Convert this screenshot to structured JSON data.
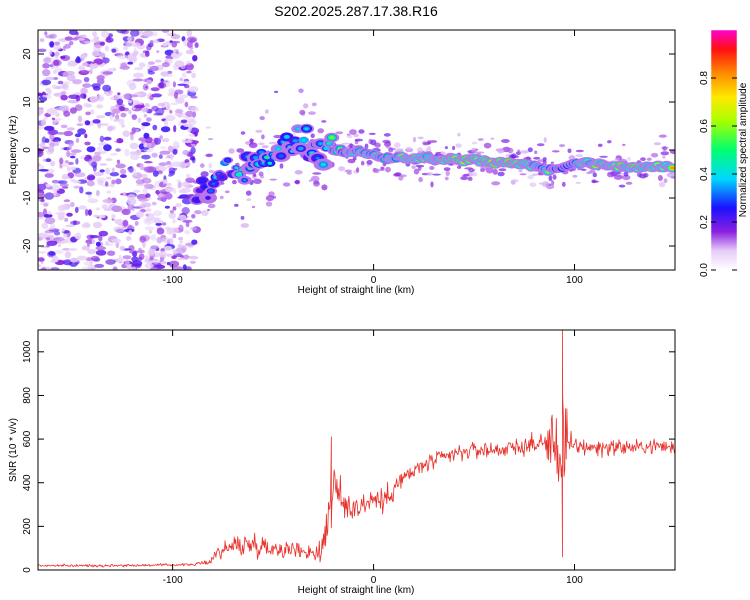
{
  "figure_title": "S202.2025.287.17.38.R16",
  "chart_data": [
    {
      "type": "heatmap",
      "title": "S202.2025.287.17.38.R16",
      "xlabel": "Height of straight line (km)",
      "ylabel": "Frequency (Hz)",
      "xlim": [
        -167,
        150
      ],
      "ylim": [
        -25,
        25
      ],
      "xticks": [
        -100,
        0,
        100
      ],
      "yticks": [
        -20,
        -10,
        0,
        10,
        20
      ],
      "colorbar": {
        "label": "Normalized spectral amplitude",
        "range": [
          0,
          1
        ],
        "ticks": [
          0.0,
          0.2,
          0.4,
          0.6,
          0.8
        ],
        "tick_labels": [
          "0.0",
          "0.2",
          "0.4",
          "0.6",
          "0.8"
        ]
      },
      "noise_region": {
        "x_range": [
          -167,
          -88
        ],
        "freq_range": [
          -25,
          25
        ],
        "amplitude": "low (0.05-0.25)"
      },
      "ridge": [
        {
          "x": -88,
          "freq": -9,
          "amplitude": 0.25
        },
        {
          "x": -80,
          "freq": -7,
          "amplitude": 0.35
        },
        {
          "x": -70,
          "freq": -5,
          "amplitude": 0.4
        },
        {
          "x": -60,
          "freq": -3,
          "amplitude": 0.42
        },
        {
          "x": -50,
          "freq": -1,
          "amplitude": 0.4
        },
        {
          "x": -40,
          "freq": 1.5,
          "amplitude": 0.4
        },
        {
          "x": -32,
          "freq": 2.5,
          "amplitude": 0.35
        },
        {
          "x": -25,
          "freq": 0.5,
          "amplitude": 0.45
        },
        {
          "x": -15,
          "freq": -0.5,
          "amplitude": 0.55
        },
        {
          "x": -5,
          "freq": -0.5,
          "amplitude": 0.75
        },
        {
          "x": 5,
          "freq": -1.5,
          "amplitude": 0.6
        },
        {
          "x": 15,
          "freq": -1.5,
          "amplitude": 0.75
        },
        {
          "x": 30,
          "freq": -2,
          "amplitude": 0.8
        },
        {
          "x": 45,
          "freq": -2,
          "amplitude": 0.95
        },
        {
          "x": 60,
          "freq": -2.5,
          "amplitude": 0.85
        },
        {
          "x": 75,
          "freq": -3,
          "amplitude": 0.9
        },
        {
          "x": 85,
          "freq": -4,
          "amplitude": 0.6
        },
        {
          "x": 95,
          "freq": -3.5,
          "amplitude": 0.55
        },
        {
          "x": 105,
          "freq": -2.5,
          "amplitude": 0.7
        },
        {
          "x": 115,
          "freq": -3,
          "amplitude": 0.8
        },
        {
          "x": 125,
          "freq": -3.5,
          "amplitude": 0.9
        },
        {
          "x": 140,
          "freq": -3.5,
          "amplitude": 0.9
        },
        {
          "x": 150,
          "freq": -3.5,
          "amplitude": 0.9
        }
      ]
    },
    {
      "type": "line",
      "title": "",
      "xlabel": "Height of straight line (km)",
      "ylabel": "SNR (10 * v/v)",
      "xlim": [
        -167,
        150
      ],
      "ylim": [
        0,
        1100
      ],
      "xticks": [
        -100,
        0,
        100
      ],
      "yticks": [
        0,
        200,
        400,
        600,
        800,
        1000
      ],
      "color": "#e8302a",
      "series": [
        {
          "name": "SNR",
          "x": [
            -167,
            -140,
            -110,
            -90,
            -82,
            -78,
            -70,
            -60,
            -50,
            -40,
            -30,
            -26,
            -22,
            -20,
            -15,
            -10,
            -5,
            0,
            5,
            10,
            15,
            20,
            25,
            30,
            40,
            50,
            60,
            70,
            80,
            85,
            90,
            93,
            95,
            97,
            100,
            110,
            120,
            130,
            140,
            150
          ],
          "values": [
            20,
            20,
            22,
            25,
            35,
            80,
            110,
            120,
            100,
            95,
            80,
            85,
            280,
            380,
            300,
            290,
            300,
            330,
            310,
            380,
            420,
            450,
            480,
            500,
            530,
            550,
            550,
            560,
            575,
            580,
            590,
            560,
            580,
            560,
            570,
            560,
            565,
            560,
            570,
            560
          ],
          "noise_amp": [
            5,
            5,
            5,
            5,
            10,
            30,
            45,
            45,
            40,
            35,
            30,
            80,
            130,
            110,
            70,
            65,
            60,
            60,
            55,
            50,
            45,
            40,
            40,
            35,
            35,
            35,
            35,
            35,
            40,
            60,
            120,
            330,
            370,
            60,
            40,
            35,
            35,
            30,
            30,
            30
          ],
          "annotated_peaks": [
            {
              "x": -21,
              "y": 610
            },
            {
              "x": 94,
              "y": 1100
            },
            {
              "x": 94,
              "y": 60
            }
          ]
        }
      ]
    }
  ]
}
